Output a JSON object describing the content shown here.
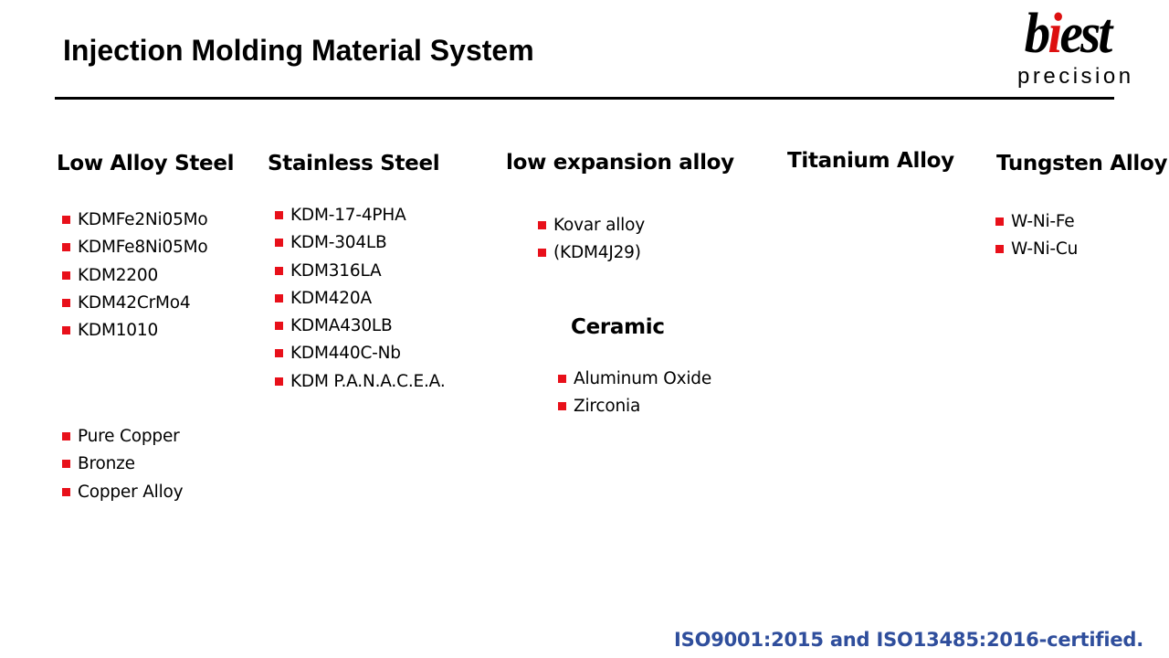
{
  "title": "Injection Molding Material System",
  "logo": {
    "word_pre": "b",
    "word_accent": "i",
    "word_post": "est",
    "sub": "precision"
  },
  "colors": {
    "bullet": "#e8101a",
    "certification": "#2f4e9c",
    "logo_accent": "#dd1010"
  },
  "sections": {
    "low_alloy": {
      "heading": "Low Alloy Steel",
      "items": [
        "KDMFe2Ni05Mo",
        "KDMFe8Ni05Mo",
        "KDM2200",
        "KDM42CrMo4",
        "KDM1010"
      ]
    },
    "copper": {
      "items": [
        "Pure Copper",
        "Bronze",
        "Copper Alloy"
      ]
    },
    "stainless": {
      "heading": "Stainless Steel",
      "items": [
        "KDM-17-4PHA",
        "KDM-304LB",
        "KDM316LA",
        "KDM420A",
        "KDMA430LB",
        "KDM440C-Nb",
        "KDM P.A.N.A.C.E.A."
      ]
    },
    "low_expansion": {
      "heading": "low expansion alloy",
      "items": [
        "Kovar alloy",
        "(KDM4J29)"
      ]
    },
    "ceramic": {
      "heading": "Ceramic",
      "items": [
        "Aluminum Oxide",
        "Zirconia"
      ]
    },
    "titanium": {
      "heading": "Titanium Alloy"
    },
    "tungsten": {
      "heading": "Tungsten Alloy",
      "items": [
        "W-Ni-Fe",
        "W-Ni-Cu"
      ]
    }
  },
  "certification": "ISO9001:2015 and ISO13485:2016-certified."
}
